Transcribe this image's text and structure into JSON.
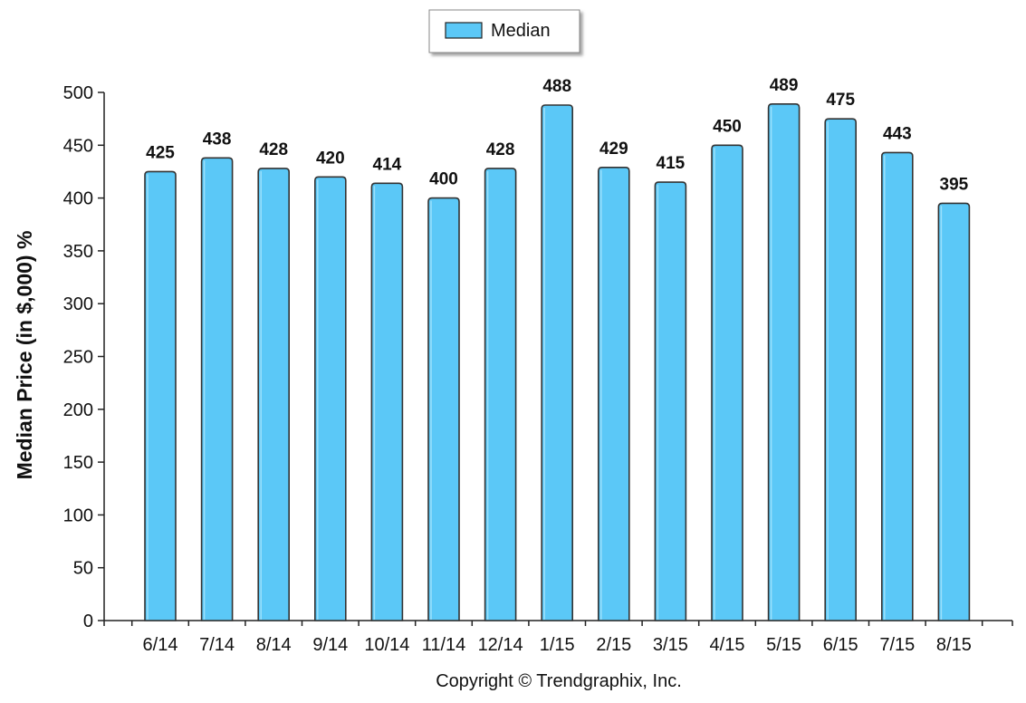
{
  "chart_data": {
    "type": "bar",
    "title": "",
    "xlabel": "",
    "ylabel": "Median Price (in $,000) %",
    "categories": [
      "6/14",
      "7/14",
      "8/14",
      "9/14",
      "10/14",
      "11/14",
      "12/14",
      "1/15",
      "2/15",
      "3/15",
      "4/15",
      "5/15",
      "6/15",
      "7/15",
      "8/15"
    ],
    "series": [
      {
        "name": "Median",
        "values": [
          425,
          438,
          428,
          420,
          414,
          400,
          428,
          488,
          429,
          415,
          450,
          489,
          475,
          443,
          395
        ],
        "color": "#5BC8F7"
      }
    ],
    "ylim": [
      0,
      500
    ],
    "yticks": [
      0,
      50,
      100,
      150,
      200,
      250,
      300,
      350,
      400,
      450,
      500
    ],
    "grid": false,
    "legend": "top-center",
    "data_labels": true,
    "footer": "Copyright © Trendgraphix, Inc."
  }
}
